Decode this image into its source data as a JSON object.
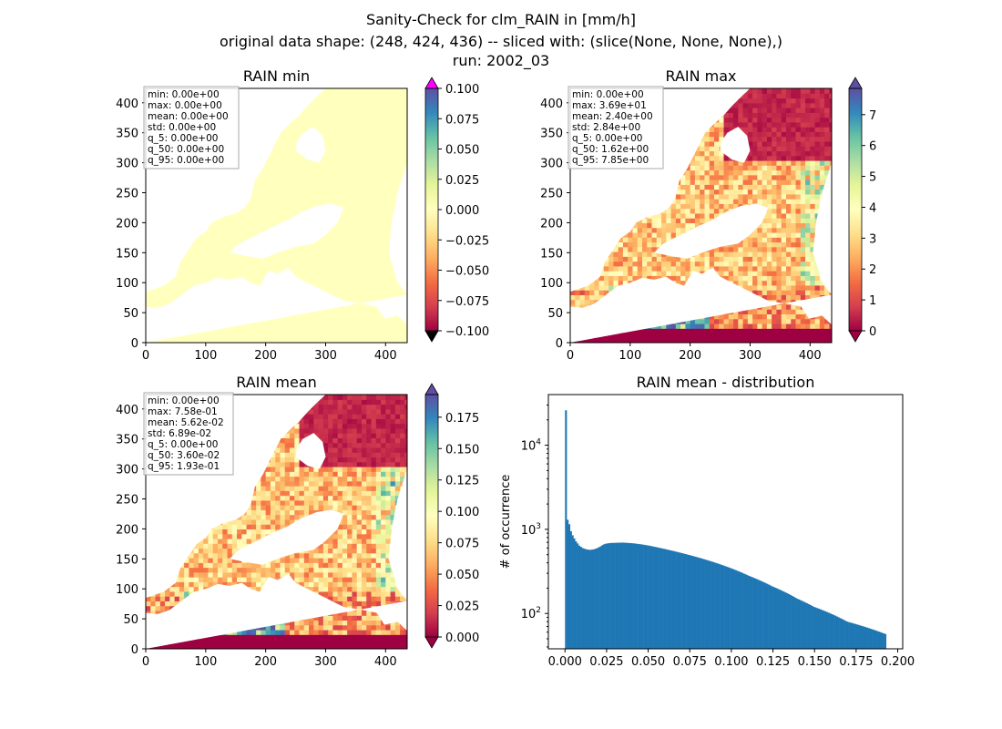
{
  "figure": {
    "title_lines": [
      "Sanity-Check for clm_RAIN in [mm/h]",
      "original data shape: (248, 424, 436) -- sliced with: (slice(None, None, None),)",
      "run: 2002_03"
    ]
  },
  "colormap": "Spectral",
  "colors": {
    "hist_bar": "#1f77b4",
    "min_field": "#ffffbe",
    "over_marker": "#ff00ff",
    "under_marker": "#000000",
    "map_extend_low": "#9e0142",
    "map_extend_high": "#5e4fa2"
  },
  "chart_data": [
    {
      "type": "heatmap",
      "title": "RAIN min",
      "xlim": [
        0,
        436
      ],
      "ylim": [
        0,
        424
      ],
      "xticks": [
        0,
        100,
        200,
        300,
        400
      ],
      "yticks": [
        0,
        50,
        100,
        150,
        200,
        250,
        300,
        350,
        400
      ],
      "colorbar": {
        "vmin": -0.1,
        "vmax": 0.1,
        "extend": "both",
        "ticks": [
          -0.1,
          -0.075,
          -0.05,
          -0.025,
          0.0,
          0.025,
          0.05,
          0.075,
          0.1
        ],
        "tick_labels": [
          "−0.100",
          "−0.075",
          "−0.050",
          "−0.025",
          "0.000",
          "0.025",
          "0.050",
          "0.075",
          "0.100"
        ]
      },
      "stats": [
        "min: 0.00e+00",
        "max: 0.00e+00",
        "mean: 0.00e+00",
        "std: 0.00e+00",
        "q_5: 0.00e+00",
        "q_50: 0.00e+00",
        "q_95: 0.00e+00"
      ]
    },
    {
      "type": "heatmap",
      "title": "RAIN max",
      "xlim": [
        0,
        436
      ],
      "ylim": [
        0,
        424
      ],
      "xticks": [
        0,
        100,
        200,
        300,
        400
      ],
      "yticks": [
        0,
        50,
        100,
        150,
        200,
        250,
        300,
        350,
        400
      ],
      "colorbar": {
        "vmin": 0,
        "vmax": 7.85,
        "extend": "both",
        "ticks": [
          0,
          1,
          2,
          3,
          4,
          5,
          6,
          7
        ],
        "tick_labels": [
          "0",
          "1",
          "2",
          "3",
          "4",
          "5",
          "6",
          "7"
        ]
      },
      "stats": [
        "min: 0.00e+00",
        "max: 3.69e+01",
        "mean: 2.40e+00",
        "std: 2.84e+00",
        "q_5: 0.00e+00",
        "q_50: 1.62e+00",
        "q_95: 7.85e+00"
      ]
    },
    {
      "type": "heatmap",
      "title": "RAIN mean",
      "xlim": [
        0,
        436
      ],
      "ylim": [
        0,
        424
      ],
      "xticks": [
        0,
        100,
        200,
        300,
        400
      ],
      "yticks": [
        0,
        50,
        100,
        150,
        200,
        250,
        300,
        350,
        400
      ],
      "colorbar": {
        "vmin": 0,
        "vmax": 0.193,
        "extend": "both",
        "ticks": [
          0.0,
          0.025,
          0.05,
          0.075,
          0.1,
          0.125,
          0.15,
          0.175
        ],
        "tick_labels": [
          "0.000",
          "0.025",
          "0.050",
          "0.075",
          "0.100",
          "0.125",
          "0.150",
          "0.175"
        ]
      },
      "stats": [
        "min: 0.00e+00",
        "max: 7.58e-01",
        "mean: 5.62e-02",
        "std: 6.89e-02",
        "q_5: 0.00e+00",
        "q_50: 3.60e-02",
        "q_95: 1.93e-01"
      ]
    },
    {
      "type": "bar",
      "title": "RAIN mean - distribution",
      "xlabel": "",
      "ylabel": "# of occurrence",
      "yscale": "log",
      "xlim": [
        -0.01,
        0.203
      ],
      "ylim": [
        38,
        40000
      ],
      "xticks": [
        0.0,
        0.025,
        0.05,
        0.075,
        0.1,
        0.125,
        0.15,
        0.175,
        0.2
      ],
      "xtick_labels": [
        "0.000",
        "0.025",
        "0.050",
        "0.075",
        "0.100",
        "0.125",
        "0.150",
        "0.175",
        "0.200"
      ],
      "ytick_labels": [
        {
          "base": "10",
          "exp": "2",
          "value": 100
        },
        {
          "base": "10",
          "exp": "3",
          "value": 1000
        },
        {
          "base": "10",
          "exp": "4",
          "value": 10000
        }
      ],
      "bin_start": 0.0,
      "bin_width": 0.001,
      "counts": [
        26000,
        1300,
        1150,
        950,
        850,
        780,
        720,
        680,
        640,
        620,
        600,
        590,
        580,
        575,
        570,
        572,
        575,
        580,
        590,
        600,
        615,
        630,
        650,
        665,
        675,
        680,
        685,
        688,
        690,
        690,
        692,
        693,
        694,
        695,
        696,
        694,
        692,
        690,
        688,
        686,
        683,
        680,
        676,
        672,
        668,
        664,
        660,
        655,
        650,
        645,
        640,
        634,
        628,
        622,
        616,
        610,
        604,
        598,
        592,
        586,
        580,
        574,
        568,
        562,
        556,
        550,
        544,
        538,
        532,
        526,
        520,
        514,
        508,
        502,
        496,
        490,
        484,
        478,
        472,
        466,
        460,
        454,
        448,
        442,
        436,
        430,
        424,
        418,
        412,
        406,
        400,
        394,
        388,
        382,
        376,
        370,
        364,
        358,
        352,
        346,
        340,
        334,
        328,
        322,
        316,
        310,
        304,
        298,
        292,
        286,
        280,
        275,
        270,
        265,
        260,
        255,
        250,
        245,
        240,
        235,
        230,
        225,
        220,
        215,
        210,
        206,
        202,
        198,
        194,
        190,
        186,
        182,
        178,
        174,
        170,
        166,
        162,
        158,
        154,
        150,
        147,
        144,
        141,
        138,
        135,
        132,
        129,
        126,
        123,
        120,
        118,
        116,
        114,
        112,
        110,
        108,
        106,
        104,
        102,
        100,
        98,
        96,
        94,
        92,
        90,
        88,
        86,
        84,
        82,
        80,
        79,
        78,
        77,
        76,
        75,
        74,
        73,
        72,
        71,
        70,
        69,
        68,
        67,
        66,
        65,
        64,
        63,
        62,
        61,
        60,
        59,
        58,
        57
      ]
    }
  ]
}
